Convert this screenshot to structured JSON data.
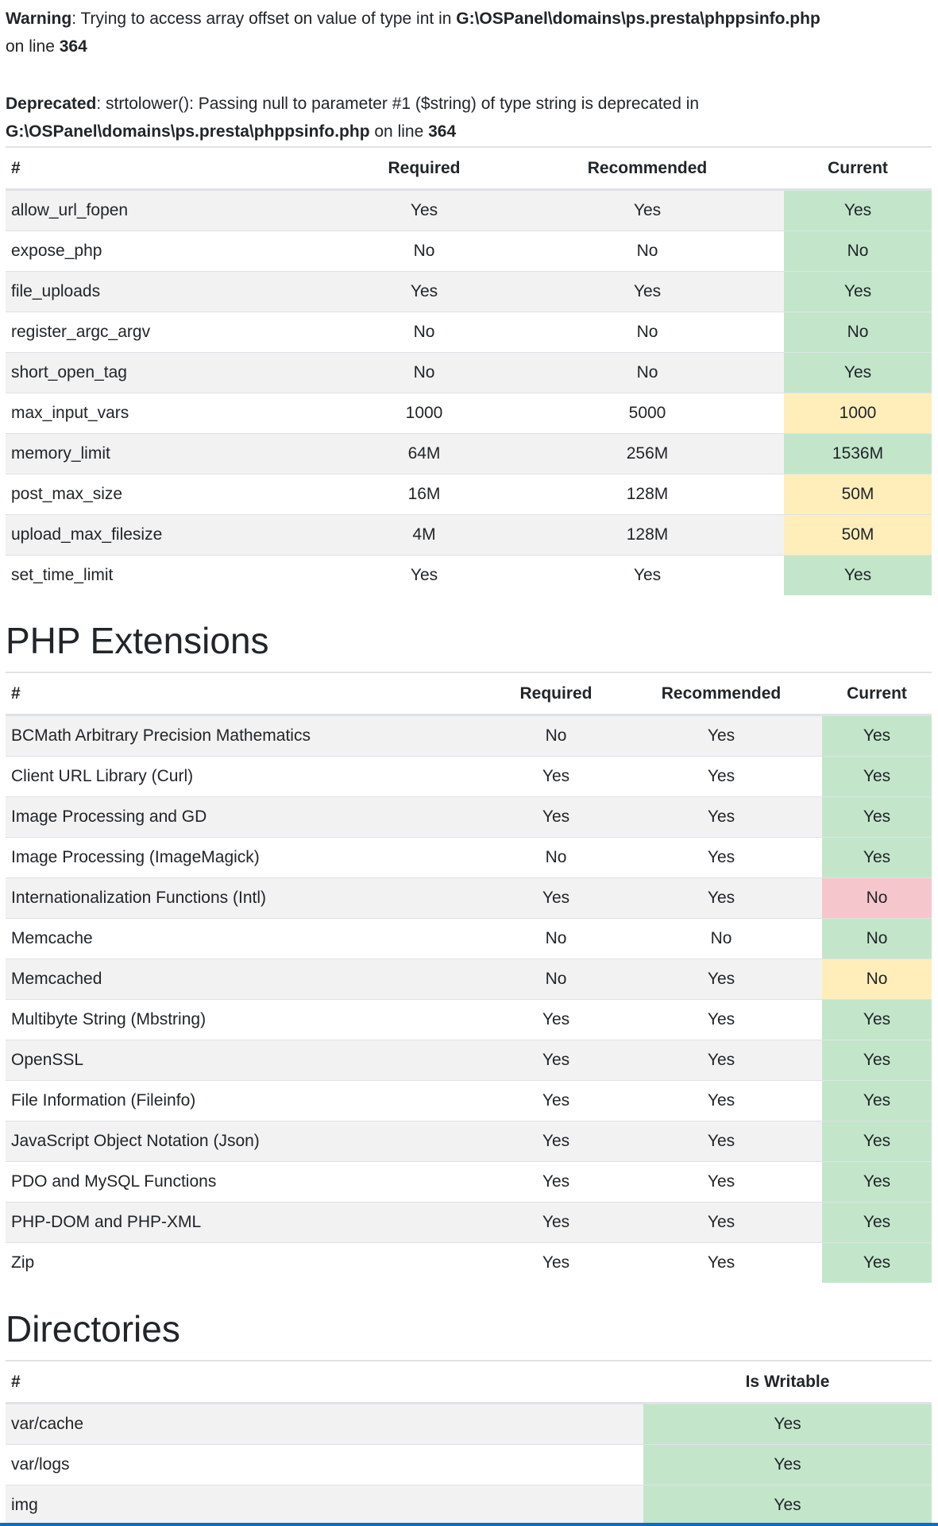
{
  "messages": {
    "warning": {
      "label": "Warning",
      "text": ": Trying to access array offset on value of type int in ",
      "file": "G:\\OSPanel\\domains\\ps.presta\\phppsinfo.php",
      "on_line": " on line ",
      "line": "364"
    },
    "deprecated": {
      "label": "Deprecated",
      "text": ": strtolower(): Passing null to parameter #1 ($string) of type string is deprecated in ",
      "file": "G:\\OSPanel\\domains\\ps.presta\\phppsinfo.php",
      "on_line": " on line ",
      "line": "364"
    }
  },
  "colors": {
    "ok": "#c3e6cb",
    "warn": "#ffeeba",
    "bad": "#f5c6cb"
  },
  "php_config": {
    "headers": [
      "#",
      "Required",
      "Recommended",
      "Current"
    ],
    "rows": [
      {
        "name": "allow_url_fopen",
        "required": "Yes",
        "recommended": "Yes",
        "current": "Yes",
        "status": "ok"
      },
      {
        "name": "expose_php",
        "required": "No",
        "recommended": "No",
        "current": "No",
        "status": "ok"
      },
      {
        "name": "file_uploads",
        "required": "Yes",
        "recommended": "Yes",
        "current": "Yes",
        "status": "ok"
      },
      {
        "name": "register_argc_argv",
        "required": "No",
        "recommended": "No",
        "current": "No",
        "status": "ok"
      },
      {
        "name": "short_open_tag",
        "required": "No",
        "recommended": "No",
        "current": "Yes",
        "status": "ok"
      },
      {
        "name": "max_input_vars",
        "required": "1000",
        "recommended": "5000",
        "current": "1000",
        "status": "warn"
      },
      {
        "name": "memory_limit",
        "required": "64M",
        "recommended": "256M",
        "current": "1536M",
        "status": "ok"
      },
      {
        "name": "post_max_size",
        "required": "16M",
        "recommended": "128M",
        "current": "50M",
        "status": "warn"
      },
      {
        "name": "upload_max_filesize",
        "required": "4M",
        "recommended": "128M",
        "current": "50M",
        "status": "warn"
      },
      {
        "name": "set_time_limit",
        "required": "Yes",
        "recommended": "Yes",
        "current": "Yes",
        "status": "ok"
      }
    ]
  },
  "php_extensions": {
    "title": "PHP Extensions",
    "headers": [
      "#",
      "Required",
      "Recommended",
      "Current"
    ],
    "rows": [
      {
        "name": "BCMath Arbitrary Precision Mathematics",
        "required": "No",
        "recommended": "Yes",
        "current": "Yes",
        "status": "ok"
      },
      {
        "name": "Client URL Library (Curl)",
        "required": "Yes",
        "recommended": "Yes",
        "current": "Yes",
        "status": "ok"
      },
      {
        "name": "Image Processing and GD",
        "required": "Yes",
        "recommended": "Yes",
        "current": "Yes",
        "status": "ok"
      },
      {
        "name": "Image Processing (ImageMagick)",
        "required": "No",
        "recommended": "Yes",
        "current": "Yes",
        "status": "ok"
      },
      {
        "name": "Internationalization Functions (Intl)",
        "required": "Yes",
        "recommended": "Yes",
        "current": "No",
        "status": "bad"
      },
      {
        "name": "Memcache",
        "required": "No",
        "recommended": "No",
        "current": "No",
        "status": "ok"
      },
      {
        "name": "Memcached",
        "required": "No",
        "recommended": "Yes",
        "current": "No",
        "status": "warn"
      },
      {
        "name": "Multibyte String (Mbstring)",
        "required": "Yes",
        "recommended": "Yes",
        "current": "Yes",
        "status": "ok"
      },
      {
        "name": "OpenSSL",
        "required": "Yes",
        "recommended": "Yes",
        "current": "Yes",
        "status": "ok"
      },
      {
        "name": "File Information (Fileinfo)",
        "required": "Yes",
        "recommended": "Yes",
        "current": "Yes",
        "status": "ok"
      },
      {
        "name": "JavaScript Object Notation (Json)",
        "required": "Yes",
        "recommended": "Yes",
        "current": "Yes",
        "status": "ok"
      },
      {
        "name": "PDO and MySQL Functions",
        "required": "Yes",
        "recommended": "Yes",
        "current": "Yes",
        "status": "ok"
      },
      {
        "name": "PHP-DOM and PHP-XML",
        "required": "Yes",
        "recommended": "Yes",
        "current": "Yes",
        "status": "ok"
      },
      {
        "name": "Zip",
        "required": "Yes",
        "recommended": "Yes",
        "current": "Yes",
        "status": "ok"
      }
    ]
  },
  "directories": {
    "title": "Directories",
    "headers": [
      "#",
      "Is Writable"
    ],
    "rows": [
      {
        "name": "var/cache",
        "writable": "Yes",
        "status": "ok"
      },
      {
        "name": "var/logs",
        "writable": "Yes",
        "status": "ok"
      },
      {
        "name": "img",
        "writable": "Yes",
        "status": "ok"
      }
    ]
  }
}
